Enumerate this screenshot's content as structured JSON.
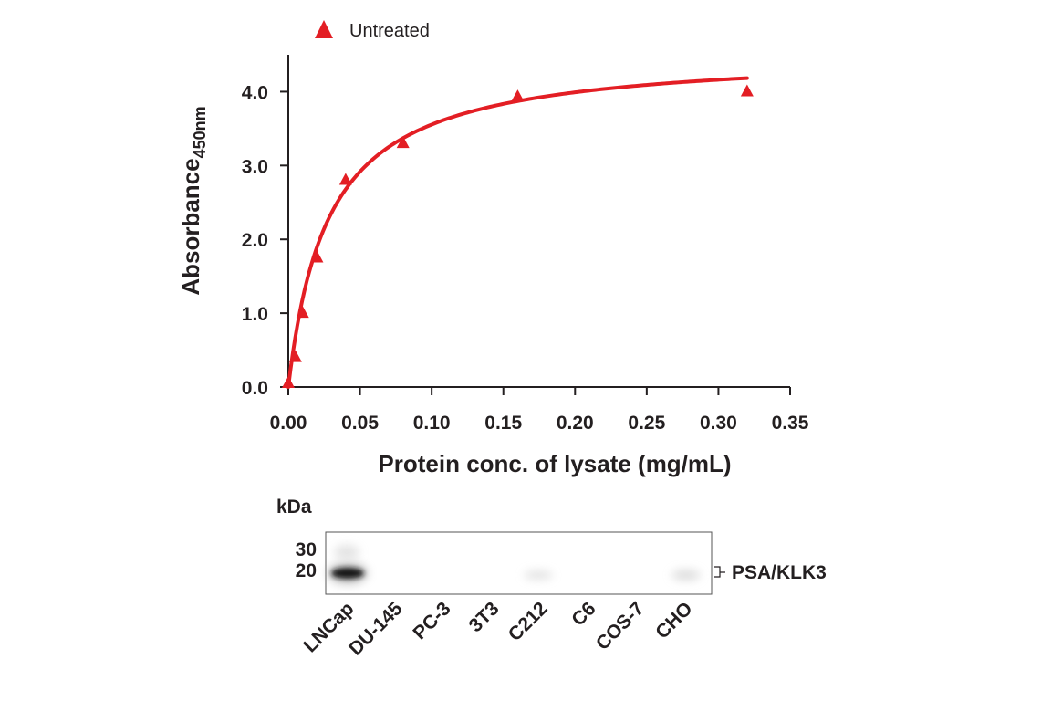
{
  "chart_data": [
    {
      "type": "scatter",
      "title": "",
      "xlabel": "Protein conc. of lysate (mg/mL)",
      "ylabel_main": "Absorbance",
      "ylabel_sub": "450nm",
      "xlim": [
        0,
        0.35
      ],
      "ylim": [
        0,
        4.5
      ],
      "xticks": [
        0,
        0.05,
        0.1,
        0.15,
        0.2,
        0.25,
        0.3,
        0.35
      ],
      "xtick_labels": [
        "0.00",
        "0.05",
        "0.10",
        "0.15",
        "0.20",
        "0.25",
        "0.30",
        "0.35"
      ],
      "yticks": [
        0,
        1,
        2,
        3,
        4
      ],
      "ytick_labels": [
        "0.0",
        "1.0",
        "2.0",
        "3.0",
        "4.0"
      ],
      "grid": false,
      "legend_position": "top-left",
      "series": [
        {
          "name": "Untreated",
          "color": "#e31e24",
          "marker": "triangle",
          "x": [
            0.0,
            0.005,
            0.01,
            0.02,
            0.04,
            0.08,
            0.16,
            0.32
          ],
          "y": [
            0.05,
            0.4,
            1.0,
            1.75,
            2.8,
            3.3,
            3.93,
            4.0
          ],
          "fit": {
            "type": "saturation",
            "vmax": 4.55,
            "k": 0.028
          }
        }
      ]
    },
    {
      "type": "western-blot",
      "unit_label": "kDa",
      "markers": [
        "30",
        "20"
      ],
      "band_label": "PSA/KLK3",
      "lanes": [
        "LNCap",
        "DU-145",
        "PC-3",
        "3T3",
        "C212",
        "C6",
        "COS-7",
        "CHO"
      ]
    }
  ]
}
